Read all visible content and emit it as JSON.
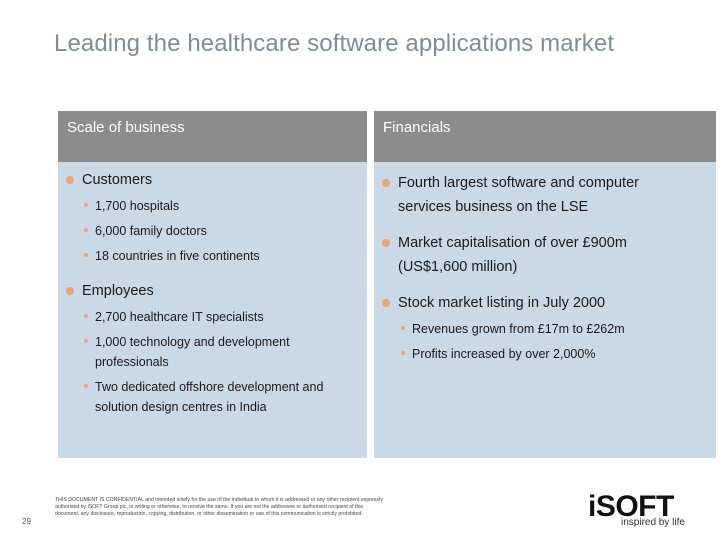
{
  "slide": {
    "title": "Leading the healthcare software applications market",
    "page_number": "29"
  },
  "left_panel": {
    "header": "Scale of business",
    "sections": [
      {
        "label": "Customers",
        "items": [
          "1,700 hospitals",
          "6,000 family doctors",
          "18 countries in five continents"
        ]
      },
      {
        "label": "Employees",
        "items": [
          "2,700 healthcare IT specialists",
          "1,000 technology and development",
          "professionals",
          "Two dedicated offshore development and",
          "solution design centres in India"
        ]
      }
    ]
  },
  "right_panel": {
    "header": "Financials",
    "bullets": [
      {
        "line1": "Fourth largest software and computer",
        "line2": "services business on the LSE"
      },
      {
        "line1": "Market capitalisation of over £900m",
        "line2": "(US$1,600 million)"
      },
      {
        "line1": "Stock market listing in July 2000"
      }
    ],
    "sub_items": [
      "Revenues grown from £17m to £262m",
      "Profits increased by over 2,000%"
    ]
  },
  "footer": {
    "disclaimer": "THIS DOCUMENT IS CONFIDENTIAL and intended solely for the use of the individual to whom it is addressed or any other recipient expressly authorised by iSOFT Group plc, in writing or otherwise, to receive the same. If you are not the addressee or authorised recipient of this document, any disclosure, reproduction, copying, distribution, or other dissemination or use of this communication is strictly prohibited.",
    "logo_text": "iSOFT",
    "tagline": "inspired by life"
  },
  "colors": {
    "title": "#7f8c97",
    "panel_bg": "#c9d9e6",
    "header_bg": "#8c8c8c",
    "bullet": "#e6a57a"
  }
}
